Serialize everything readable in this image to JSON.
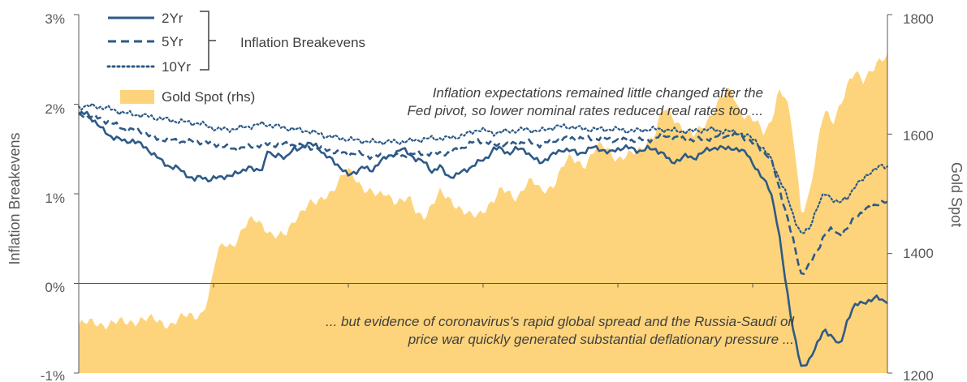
{
  "chart_data": {
    "type": "line",
    "ylabel": "Inflation Breakevens",
    "y2label": "Gold Spot",
    "ylim": [
      -1,
      3
    ],
    "y2lim": [
      1200,
      1800
    ],
    "yticks": [
      "3%",
      "2%",
      "1%",
      "0%",
      "-1%"
    ],
    "y2ticks": [
      "1800",
      "1600",
      "1400",
      "1200"
    ],
    "grid": false,
    "legend": {
      "placement": "top-left",
      "group_label": "Inflation Breakevens",
      "entries": [
        "2Yr",
        "5Yr",
        "10Yr",
        "Gold Spot (rhs)"
      ]
    },
    "annotations": {
      "top_line1": "Inflation expectations remained little changed after the",
      "top_line2": "Fed pivot, so lower nominal rates reduced real rates too ...",
      "bottom_line1": "... but evidence of coronavirus's rapid global spread and the Russia-Saudi oil",
      "bottom_line2": "price war quickly generated substantial deflationary pressure ..."
    },
    "colors": {
      "breakevens": "#2e5a87",
      "gold": "#fdd47c",
      "axis": "#595959"
    },
    "x_points": 301,
    "series": [
      {
        "name": "2Yr",
        "style": "solid",
        "keyframes": [
          [
            0,
            1.88
          ],
          [
            5,
            1.9
          ],
          [
            10,
            1.82
          ],
          [
            15,
            1.72
          ],
          [
            20,
            1.65
          ],
          [
            25,
            1.62
          ],
          [
            30,
            1.58
          ],
          [
            35,
            1.6
          ],
          [
            40,
            1.55
          ],
          [
            45,
            1.5
          ],
          [
            50,
            1.42
          ],
          [
            55,
            1.35
          ],
          [
            60,
            1.3
          ],
          [
            65,
            1.28
          ],
          [
            70,
            1.22
          ],
          [
            75,
            1.15
          ],
          [
            80,
            1.2
          ],
          [
            85,
            1.15
          ],
          [
            90,
            1.18
          ],
          [
            95,
            1.2
          ],
          [
            100,
            1.2
          ],
          [
            105,
            1.25
          ],
          [
            110,
            1.3
          ],
          [
            115,
            1.25
          ],
          [
            120,
            1.3
          ],
          [
            123,
            1.5
          ],
          [
            126,
            1.4
          ],
          [
            130,
            1.45
          ],
          [
            135,
            1.4
          ],
          [
            140,
            1.5
          ],
          [
            145,
            1.52
          ],
          [
            150,
            1.55
          ],
          [
            155,
            1.55
          ],
          [
            160,
            1.42
          ],
          [
            165,
            1.38
          ],
          [
            170,
            1.3
          ],
          [
            175,
            1.2
          ],
          [
            180,
            1.25
          ],
          [
            185,
            1.3
          ],
          [
            190,
            1.25
          ],
          [
            195,
            1.35
          ],
          [
            200,
            1.4
          ],
          [
            205,
            1.45
          ],
          [
            210,
            1.5
          ],
          [
            215,
            1.45
          ],
          [
            220,
            1.38
          ],
          [
            225,
            1.35
          ],
          [
            230,
            1.25
          ],
          [
            235,
            1.3
          ],
          [
            240,
            1.2
          ],
          [
            245,
            1.2
          ],
          [
            250,
            1.25
          ],
          [
            255,
            1.3
          ],
          [
            260,
            1.35
          ],
          [
            265,
            1.4
          ],
          [
            270,
            1.5
          ],
          [
            275,
            1.5
          ],
          [
            280,
            1.45
          ],
          [
            285,
            1.5
          ],
          [
            290,
            1.5
          ],
          [
            295,
            1.4
          ],
          [
            300,
            1.35
          ],
          [
            305,
            1.4
          ],
          [
            310,
            1.45
          ],
          [
            315,
            1.5
          ],
          [
            320,
            1.48
          ],
          [
            325,
            1.45
          ],
          [
            330,
            1.48
          ],
          [
            335,
            1.52
          ],
          [
            340,
            1.5
          ],
          [
            345,
            1.45
          ],
          [
            350,
            1.5
          ],
          [
            355,
            1.52
          ],
          [
            360,
            1.5
          ],
          [
            365,
            1.48
          ],
          [
            370,
            1.5
          ],
          [
            375,
            1.5
          ],
          [
            380,
            1.45
          ],
          [
            385,
            1.35
          ],
          [
            390,
            1.38
          ],
          [
            395,
            1.42
          ],
          [
            400,
            1.4
          ],
          [
            405,
            1.45
          ],
          [
            410,
            1.5
          ],
          [
            415,
            1.52
          ],
          [
            420,
            1.5
          ],
          [
            425,
            1.52
          ],
          [
            430,
            1.48
          ],
          [
            435,
            1.45
          ],
          [
            440,
            1.3
          ],
          [
            443,
            1.2
          ],
          [
            446,
            1.15
          ],
          [
            450,
            1.05
          ],
          [
            455,
            0.6
          ],
          [
            460,
            0.0
          ],
          [
            465,
            -0.55
          ],
          [
            470,
            -0.95
          ],
          [
            475,
            -0.85
          ],
          [
            480,
            -0.7
          ],
          [
            485,
            -0.5
          ],
          [
            490,
            -0.6
          ],
          [
            495,
            -0.7
          ],
          [
            500,
            -0.4
          ],
          [
            505,
            -0.25
          ],
          [
            510,
            -0.2
          ],
          [
            515,
            -0.2
          ],
          [
            520,
            -0.15
          ],
          [
            525,
            -0.2
          ],
          [
            526,
            -0.2
          ]
        ]
      },
      {
        "name": "5Yr",
        "style": "dashed",
        "keyframes": [
          [
            0,
            1.88
          ],
          [
            10,
            1.86
          ],
          [
            20,
            1.8
          ],
          [
            30,
            1.72
          ],
          [
            40,
            1.7
          ],
          [
            50,
            1.62
          ],
          [
            60,
            1.6
          ],
          [
            70,
            1.58
          ],
          [
            80,
            1.58
          ],
          [
            90,
            1.55
          ],
          [
            100,
            1.5
          ],
          [
            110,
            1.52
          ],
          [
            120,
            1.55
          ],
          [
            130,
            1.55
          ],
          [
            140,
            1.55
          ],
          [
            150,
            1.52
          ],
          [
            160,
            1.5
          ],
          [
            170,
            1.45
          ],
          [
            180,
            1.45
          ],
          [
            190,
            1.42
          ],
          [
            200,
            1.42
          ],
          [
            210,
            1.42
          ],
          [
            220,
            1.45
          ],
          [
            230,
            1.45
          ],
          [
            240,
            1.45
          ],
          [
            250,
            1.52
          ],
          [
            260,
            1.6
          ],
          [
            270,
            1.55
          ],
          [
            280,
            1.55
          ],
          [
            290,
            1.58
          ],
          [
            300,
            1.55
          ],
          [
            310,
            1.6
          ],
          [
            320,
            1.62
          ],
          [
            330,
            1.62
          ],
          [
            340,
            1.62
          ],
          [
            350,
            1.6
          ],
          [
            360,
            1.6
          ],
          [
            370,
            1.6
          ],
          [
            380,
            1.65
          ],
          [
            390,
            1.62
          ],
          [
            400,
            1.6
          ],
          [
            410,
            1.62
          ],
          [
            420,
            1.65
          ],
          [
            430,
            1.65
          ],
          [
            440,
            1.55
          ],
          [
            450,
            1.4
          ],
          [
            455,
            1.1
          ],
          [
            460,
            0.8
          ],
          [
            465,
            0.45
          ],
          [
            470,
            0.1
          ],
          [
            475,
            0.2
          ],
          [
            480,
            0.35
          ],
          [
            485,
            0.55
          ],
          [
            490,
            0.6
          ],
          [
            495,
            0.55
          ],
          [
            500,
            0.6
          ],
          [
            505,
            0.75
          ],
          [
            510,
            0.8
          ],
          [
            515,
            0.85
          ],
          [
            520,
            0.9
          ],
          [
            526,
            0.9
          ]
        ]
      },
      {
        "name": "10Yr",
        "style": "dotted",
        "keyframes": [
          [
            0,
            1.97
          ],
          [
            10,
            1.98
          ],
          [
            20,
            1.95
          ],
          [
            30,
            1.9
          ],
          [
            40,
            1.88
          ],
          [
            50,
            1.85
          ],
          [
            60,
            1.82
          ],
          [
            70,
            1.8
          ],
          [
            80,
            1.78
          ],
          [
            90,
            1.72
          ],
          [
            100,
            1.72
          ],
          [
            110,
            1.75
          ],
          [
            120,
            1.78
          ],
          [
            130,
            1.75
          ],
          [
            140,
            1.72
          ],
          [
            150,
            1.7
          ],
          [
            160,
            1.65
          ],
          [
            170,
            1.62
          ],
          [
            180,
            1.6
          ],
          [
            190,
            1.58
          ],
          [
            200,
            1.58
          ],
          [
            210,
            1.58
          ],
          [
            220,
            1.6
          ],
          [
            230,
            1.62
          ],
          [
            240,
            1.62
          ],
          [
            250,
            1.65
          ],
          [
            260,
            1.72
          ],
          [
            270,
            1.68
          ],
          [
            280,
            1.7
          ],
          [
            290,
            1.72
          ],
          [
            300,
            1.7
          ],
          [
            310,
            1.75
          ],
          [
            320,
            1.75
          ],
          [
            330,
            1.72
          ],
          [
            340,
            1.72
          ],
          [
            350,
            1.72
          ],
          [
            360,
            1.7
          ],
          [
            370,
            1.72
          ],
          [
            380,
            1.72
          ],
          [
            390,
            1.7
          ],
          [
            400,
            1.7
          ],
          [
            410,
            1.72
          ],
          [
            420,
            1.7
          ],
          [
            430,
            1.68
          ],
          [
            440,
            1.6
          ],
          [
            450,
            1.4
          ],
          [
            455,
            1.2
          ],
          [
            460,
            1.0
          ],
          [
            465,
            0.75
          ],
          [
            470,
            0.55
          ],
          [
            475,
            0.6
          ],
          [
            480,
            0.85
          ],
          [
            485,
            1.0
          ],
          [
            490,
            0.95
          ],
          [
            495,
            0.9
          ],
          [
            500,
            0.95
          ],
          [
            505,
            1.1
          ],
          [
            510,
            1.15
          ],
          [
            515,
            1.25
          ],
          [
            520,
            1.3
          ],
          [
            526,
            1.3
          ]
        ]
      }
    ],
    "gold": {
      "name": "Gold Spot (rhs)",
      "keyframes": [
        [
          0,
          1280
        ],
        [
          10,
          1285
        ],
        [
          20,
          1282
        ],
        [
          30,
          1285
        ],
        [
          40,
          1290
        ],
        [
          50,
          1288
        ],
        [
          60,
          1282
        ],
        [
          70,
          1295
        ],
        [
          80,
          1300
        ],
        [
          85,
          1330
        ],
        [
          90,
          1400
        ],
        [
          95,
          1420
        ],
        [
          100,
          1415
        ],
        [
          105,
          1430
        ],
        [
          110,
          1450
        ],
        [
          115,
          1460
        ],
        [
          120,
          1450
        ],
        [
          125,
          1430
        ],
        [
          130,
          1425
        ],
        [
          135,
          1435
        ],
        [
          140,
          1460
        ],
        [
          145,
          1470
        ],
        [
          150,
          1480
        ],
        [
          155,
          1485
        ],
        [
          160,
          1500
        ],
        [
          165,
          1505
        ],
        [
          170,
          1520
        ],
        [
          175,
          1540
        ],
        [
          180,
          1530
        ],
        [
          185,
          1510
        ],
        [
          190,
          1500
        ],
        [
          195,
          1495
        ],
        [
          200,
          1505
        ],
        [
          205,
          1490
        ],
        [
          210,
          1485
        ],
        [
          215,
          1490
        ],
        [
          220,
          1470
        ],
        [
          225,
          1465
        ],
        [
          230,
          1480
        ],
        [
          235,
          1500
        ],
        [
          240,
          1495
        ],
        [
          245,
          1485
        ],
        [
          250,
          1470
        ],
        [
          255,
          1460
        ],
        [
          260,
          1465
        ],
        [
          265,
          1480
        ],
        [
          270,
          1490
        ],
        [
          275,
          1505
        ],
        [
          280,
          1500
        ],
        [
          285,
          1495
        ],
        [
          290,
          1515
        ],
        [
          295,
          1520
        ],
        [
          300,
          1505
        ],
        [
          305,
          1510
        ],
        [
          310,
          1520
        ],
        [
          315,
          1545
        ],
        [
          320,
          1560
        ],
        [
          325,
          1555
        ],
        [
          330,
          1550
        ],
        [
          335,
          1570
        ],
        [
          340,
          1580
        ],
        [
          345,
          1575
        ],
        [
          350,
          1560
        ],
        [
          355,
          1560
        ],
        [
          360,
          1565
        ],
        [
          365,
          1575
        ],
        [
          370,
          1590
        ],
        [
          375,
          1600
        ],
        [
          380,
          1640
        ],
        [
          385,
          1635
        ],
        [
          390,
          1620
        ],
        [
          395,
          1605
        ],
        [
          400,
          1595
        ],
        [
          405,
          1610
        ],
        [
          410,
          1630
        ],
        [
          415,
          1650
        ],
        [
          420,
          1665
        ],
        [
          425,
          1670
        ],
        [
          430,
          1640
        ],
        [
          435,
          1630
        ],
        [
          440,
          1620
        ],
        [
          445,
          1600
        ],
        [
          450,
          1620
        ],
        [
          455,
          1675
        ],
        [
          460,
          1660
        ],
        [
          465,
          1590
        ],
        [
          470,
          1470
        ],
        [
          475,
          1500
        ],
        [
          480,
          1570
        ],
        [
          485,
          1640
        ],
        [
          490,
          1620
        ],
        [
          495,
          1650
        ],
        [
          500,
          1680
        ],
        [
          505,
          1700
        ],
        [
          510,
          1690
        ],
        [
          515,
          1710
        ],
        [
          520,
          1720
        ],
        [
          526,
          1725
        ]
      ]
    }
  }
}
